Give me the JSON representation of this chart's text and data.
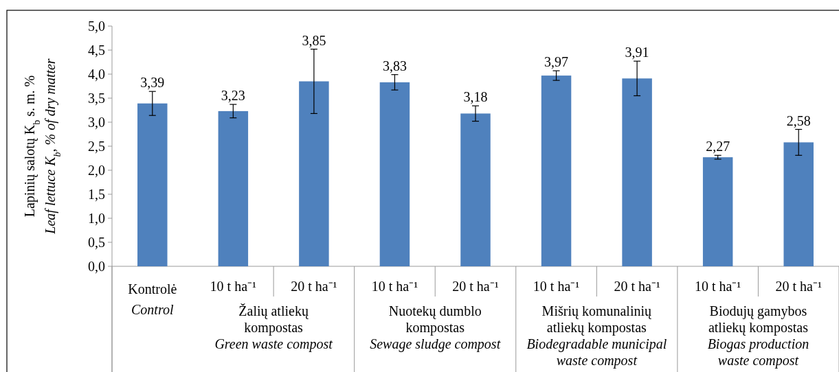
{
  "chart_data": {
    "type": "bar",
    "ylabel": "Lapinių salotų K$_{b}$ s. m. %\nLeaf lettuce K$_{b}$, % of dry matter",
    "categories": [
      "Kontrolė\nControl",
      "10 t ha⁻¹",
      "20 t ha⁻¹",
      "10 t ha⁻¹",
      "20 t ha⁻¹",
      "10 t ha⁻¹",
      "20 t ha⁻¹",
      "10 t ha⁻¹",
      "20 t ha⁻¹"
    ],
    "values": [
      3.39,
      3.23,
      3.85,
      3.83,
      3.18,
      3.97,
      3.91,
      2.27,
      2.58
    ],
    "value_labels": [
      "3,39",
      "3,23",
      "3,85",
      "3,83",
      "3,18",
      "3,97",
      "3,91",
      "2,27",
      "2,58"
    ],
    "errors": [
      0.25,
      0.14,
      0.67,
      0.16,
      0.16,
      0.1,
      0.36,
      0.04,
      0.27
    ],
    "color": "#4f81bd",
    "ylim": [
      0,
      5
    ],
    "yticks": [
      {
        "value": 0,
        "label": "0,0"
      },
      {
        "value": 0.5,
        "label": "0,5"
      },
      {
        "value": 1,
        "label": "1,0"
      },
      {
        "value": 1.5,
        "label": "1,5"
      },
      {
        "value": 2,
        "label": "2,0"
      },
      {
        "value": 2.5,
        "label": "2,5"
      },
      {
        "value": 3,
        "label": "3,0"
      },
      {
        "value": 3.5,
        "label": "3,5"
      },
      {
        "value": 4,
        "label": "4,0"
      },
      {
        "value": 4.5,
        "label": "4,5"
      },
      {
        "value": 5,
        "label": "5,0"
      }
    ],
    "annotations": [
      "Žalių atliekų\nkompostas",
      "Green waste compost",
      "Nuotekų dumblo\nkompostas",
      "Sewage sludge compost",
      "Mišrių komunalinių\natliekų kompostas",
      "Biodegradable municipal\nwaste compost",
      "Biodujų gamybos\natliekų kompostas",
      "Biogas production\nwaste compost"
    ]
  }
}
